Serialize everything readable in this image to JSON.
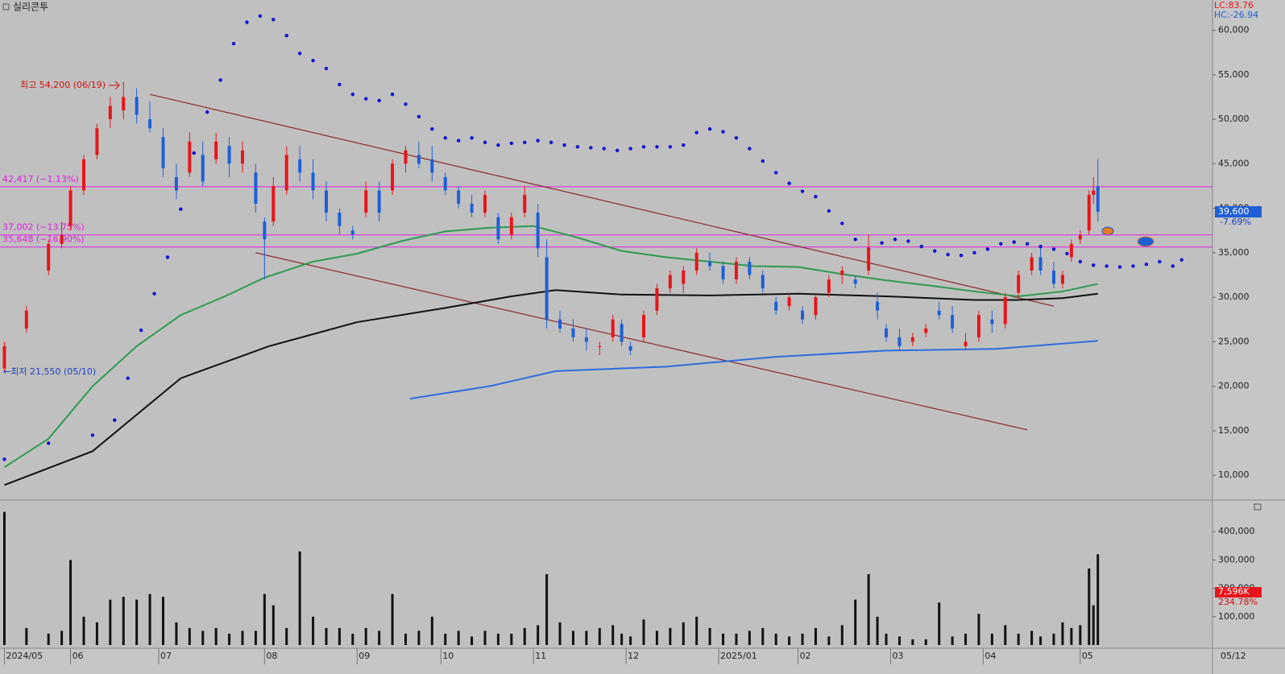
{
  "chart_data": [
    {
      "type": "candlestick",
      "title": "실리콘투",
      "corner_labels": [
        "LC:83.76",
        "HC:-26.94"
      ],
      "x": [
        0,
        5,
        10,
        13,
        15,
        18,
        21,
        24,
        27,
        30,
        33,
        36,
        39,
        42,
        45,
        48,
        51,
        54,
        57,
        59,
        61,
        64,
        67,
        70,
        73,
        76,
        79,
        82,
        85,
        88,
        91,
        94,
        97,
        100,
        103,
        106,
        109,
        112,
        115,
        118,
        121,
        123,
        126,
        129,
        132,
        135,
        138,
        140,
        142,
        145,
        148,
        151,
        154,
        157,
        160,
        163,
        166,
        169,
        172,
        175,
        178,
        181,
        184,
        187,
        190,
        193,
        196,
        198,
        200,
        203,
        206,
        209,
        212,
        215,
        218,
        221,
        224,
        227,
        230,
        233,
        235,
        238,
        240,
        242,
        244,
        246,
        247,
        248
      ],
      "open": [
        22000,
        26500,
        33000,
        36000,
        38000,
        42000,
        46000,
        50000,
        51000,
        52500,
        50000,
        48000,
        43500,
        44000,
        46000,
        45500,
        47000,
        45000,
        44000,
        38500,
        38500,
        42000,
        45500,
        44000,
        42000,
        39500,
        37500,
        39500,
        42000,
        42000,
        45000,
        46000,
        45500,
        43500,
        42000,
        40500,
        39500,
        39000,
        37000,
        39500,
        39500,
        34500,
        27500,
        26500,
        25500,
        24500,
        25500,
        27000,
        24500,
        25500,
        28500,
        31000,
        31500,
        33000,
        34000,
        33500,
        32000,
        34000,
        32500,
        29500,
        29000,
        28500,
        28000,
        30500,
        32500,
        32000,
        33000,
        29500,
        26500,
        25500,
        25000,
        26000,
        28500,
        28000,
        24500,
        25500,
        27500,
        27000,
        30500,
        33000,
        34500,
        33000,
        31500,
        34500,
        36500,
        37500,
        41500,
        42500
      ],
      "high": [
        25000,
        29000,
        36500,
        38500,
        42500,
        46000,
        49500,
        52500,
        54200,
        53500,
        52000,
        49000,
        45000,
        48500,
        47500,
        48500,
        48000,
        47500,
        45000,
        39000,
        43500,
        47000,
        47000,
        45500,
        43000,
        40000,
        38000,
        43000,
        43000,
        45500,
        47000,
        47500,
        47000,
        44000,
        42500,
        41500,
        42000,
        39500,
        39500,
        42500,
        40500,
        36500,
        28500,
        27500,
        26500,
        25000,
        28000,
        27500,
        25000,
        28500,
        31500,
        33000,
        33500,
        35500,
        35000,
        34000,
        34500,
        34500,
        33000,
        30000,
        30500,
        29000,
        30500,
        32500,
        33500,
        32500,
        37000,
        30500,
        27000,
        26500,
        26000,
        27000,
        29500,
        29000,
        26000,
        28500,
        28500,
        30500,
        33000,
        35000,
        35500,
        34000,
        33000,
        36500,
        37500,
        42000,
        43500,
        45500
      ],
      "low": [
        21550,
        26000,
        32500,
        35500,
        37500,
        41500,
        45500,
        49000,
        50000,
        49500,
        48500,
        43500,
        41000,
        43500,
        42500,
        45000,
        43500,
        44000,
        39500,
        32000,
        38000,
        41500,
        43000,
        41000,
        38500,
        37000,
        36500,
        39000,
        38500,
        41500,
        44000,
        44500,
        43000,
        41500,
        40000,
        39000,
        39000,
        36000,
        36500,
        39000,
        34500,
        26500,
        26000,
        25000,
        24000,
        23500,
        25000,
        24500,
        23500,
        25000,
        28000,
        30500,
        30500,
        32500,
        33000,
        31500,
        31500,
        32000,
        30500,
        28000,
        28500,
        27000,
        27500,
        30000,
        31500,
        31000,
        32500,
        27500,
        25000,
        24000,
        24500,
        25500,
        27500,
        26000,
        24000,
        25000,
        26000,
        26500,
        30000,
        32500,
        32500,
        31000,
        31000,
        34000,
        36000,
        37000,
        40500,
        38500
      ],
      "close": [
        24500,
        28500,
        36000,
        37000,
        42000,
        45500,
        49000,
        51500,
        52500,
        50500,
        49000,
        44500,
        42000,
        47500,
        43000,
        47500,
        45000,
        46500,
        40500,
        36500,
        42500,
        46000,
        44000,
        42000,
        39500,
        38000,
        37000,
        42000,
        39500,
        45000,
        46500,
        45000,
        44000,
        42000,
        40500,
        39500,
        41500,
        36500,
        39000,
        41500,
        35500,
        27500,
        26500,
        25500,
        25000,
        24500,
        27500,
        25000,
        24000,
        28000,
        31000,
        32500,
        33000,
        35000,
        33500,
        32000,
        34000,
        32500,
        31000,
        28500,
        30000,
        27500,
        30000,
        32000,
        33000,
        31500,
        35500,
        28500,
        25500,
        24500,
        25500,
        26500,
        28000,
        26500,
        25000,
        28000,
        27000,
        30000,
        32500,
        34500,
        33000,
        31500,
        32500,
        36000,
        37000,
        41500,
        42000,
        39600
      ],
      "up_color": "#e8141b",
      "down_color": "#1f5fd6",
      "lines": [
        {
          "color": "#2e9a50",
          "x": [
            0,
            10,
            20,
            30,
            40,
            50,
            59,
            70,
            80,
            90,
            100,
            110,
            120,
            130,
            140,
            150,
            160,
            170,
            180,
            190,
            200,
            210,
            220,
            230,
            240,
            248
          ],
          "values": [
            10900,
            14100,
            20000,
            24500,
            28000,
            30100,
            32200,
            34000,
            34900,
            36300,
            37400,
            37800,
            38000,
            36700,
            35200,
            34500,
            34000,
            33500,
            33400,
            32600,
            31900,
            31300,
            30650,
            30100,
            30650,
            31500
          ]
        },
        {
          "color": "#111111",
          "x": [
            0,
            20,
            40,
            60,
            80,
            100,
            115,
            125,
            140,
            160,
            180,
            200,
            220,
            230,
            240,
            248
          ],
          "values": [
            8900,
            12700,
            20900,
            24500,
            27200,
            28800,
            30100,
            30800,
            30300,
            30200,
            30400,
            30100,
            29700,
            29700,
            29900,
            30400
          ]
        },
        {
          "color": "#2f6be0",
          "x": [
            92,
            110,
            125,
            150,
            175,
            200,
            225,
            248
          ],
          "values": [
            18600,
            20000,
            21700,
            22200,
            23300,
            24000,
            24200,
            25100
          ]
        }
      ],
      "trendlines": [
        {
          "color": "#8b2a2a",
          "x": [
            33,
            238
          ],
          "values": [
            52800,
            29000
          ]
        },
        {
          "color": "#8b2a2a",
          "x": [
            57,
            232
          ],
          "values": [
            35000,
            15100
          ]
        }
      ],
      "sar": {
        "color": "#1010d0",
        "x": [
          0,
          10,
          20,
          25,
          28,
          31,
          34,
          37,
          40,
          43,
          46,
          49,
          52,
          55,
          58,
          61,
          64,
          67,
          70,
          73,
          76,
          79,
          82,
          85,
          88,
          91,
          94,
          97,
          100,
          103,
          106,
          109,
          112,
          115,
          118,
          121,
          124,
          127,
          130,
          133,
          136,
          139,
          142,
          145,
          148,
          151,
          154,
          157,
          160,
          163,
          166,
          169,
          172,
          175,
          178,
          181,
          184,
          187,
          190,
          193,
          196,
          199,
          202,
          205,
          208,
          211,
          214,
          217,
          220,
          223,
          226,
          229,
          232,
          235,
          238,
          241,
          244,
          247,
          250,
          253,
          256,
          259,
          262,
          265,
          267
        ],
        "values": [
          11800,
          13600,
          14500,
          16200,
          20900,
          26300,
          30400,
          34500,
          39900,
          46200,
          50800,
          54400,
          58500,
          60900,
          61600,
          61200,
          59400,
          57400,
          56600,
          55700,
          53900,
          52800,
          52300,
          52100,
          52800,
          51700,
          50300,
          48900,
          47900,
          47600,
          47900,
          47400,
          47100,
          47300,
          47400,
          47600,
          47400,
          47100,
          46900,
          46800,
          46700,
          46500,
          46700,
          46900,
          46900,
          46900,
          47100,
          48500,
          48900,
          48600,
          47900,
          46700,
          45300,
          44000,
          42800,
          41900,
          41300,
          39700,
          38300,
          36500,
          35400,
          36100,
          36500,
          36300,
          35700,
          35200,
          34800,
          34700,
          35000,
          35400,
          36000,
          36200,
          36000,
          35700,
          35400,
          34900,
          34000,
          33600,
          33500,
          33400,
          33500,
          33700,
          34000,
          33500,
          34200
        ]
      },
      "levels": [
        {
          "value": 42417,
          "label": "42,417 (−1.13%)"
        },
        {
          "value": 37002,
          "label": "37,002 (−13.75%)"
        },
        {
          "value": 35648,
          "label": "35,648 (−16.90%)"
        }
      ],
      "level_color": "#e020e0",
      "high_label": "최고 54,200 (06/19)",
      "low_label": "←최저 21,550 (05/10)",
      "last_price": {
        "value": 39600,
        "label": "39,600"
      },
      "change": "-7.69%",
      "xlim": [
        -1,
        274
      ],
      "ylim": [
        7300,
        63400
      ],
      "yticks": [
        {
          "value": 10000,
          "label": "10,000"
        },
        {
          "value": 15000,
          "label": "15,000"
        },
        {
          "value": 20000,
          "label": "20,000"
        },
        {
          "value": 25000,
          "label": "25,000"
        },
        {
          "value": 30000,
          "label": "30,000"
        },
        {
          "value": 35000,
          "label": "35,000"
        },
        {
          "value": 40000,
          "label": "40,000"
        },
        {
          "value": 45000,
          "label": "45,000"
        },
        {
          "value": 50000,
          "label": "50,000"
        },
        {
          "value": 55000,
          "label": "55,000"
        },
        {
          "value": 60000,
          "label": "60,000"
        }
      ],
      "xticks": [
        {
          "value": 0,
          "label": "2024/05"
        },
        {
          "value": 15,
          "label": "06"
        },
        {
          "value": 35,
          "label": "07"
        },
        {
          "value": 59,
          "label": "08"
        },
        {
          "value": 80,
          "label": "09"
        },
        {
          "value": 99,
          "label": "10"
        },
        {
          "value": 120,
          "label": "11"
        },
        {
          "value": 141,
          "label": "12"
        },
        {
          "value": 162,
          "label": "2025/01"
        },
        {
          "value": 180,
          "label": "02"
        },
        {
          "value": 201,
          "label": "03"
        },
        {
          "value": 222,
          "label": "04"
        },
        {
          "value": 244,
          "label": "05"
        }
      ],
      "end_date": "05/12"
    },
    {
      "type": "bar",
      "color": "#111111",
      "last_color": "#e8141b",
      "values": [
        470000,
        60000,
        40000,
        50000,
        300000,
        100000,
        80000,
        160000,
        170000,
        160000,
        180000,
        170000,
        80000,
        60000,
        50000,
        60000,
        40000,
        50000,
        50000,
        180000,
        140000,
        60000,
        330000,
        100000,
        60000,
        60000,
        40000,
        60000,
        50000,
        180000,
        40000,
        50000,
        100000,
        40000,
        50000,
        30000,
        50000,
        40000,
        40000,
        60000,
        70000,
        250000,
        80000,
        50000,
        50000,
        60000,
        70000,
        40000,
        30000,
        90000,
        50000,
        60000,
        80000,
        100000,
        60000,
        40000,
        40000,
        50000,
        60000,
        40000,
        30000,
        40000,
        60000,
        30000,
        70000,
        160000,
        250000,
        100000,
        40000,
        30000,
        20000,
        20000,
        150000,
        30000,
        40000,
        110000,
        40000,
        70000,
        40000,
        50000,
        30000,
        40000,
        80000,
        60000,
        70000,
        270000,
        140000,
        320000
      ],
      "ylim": [
        0,
        500000
      ],
      "yticks": [
        {
          "value": 100000,
          "label": "100,000"
        },
        {
          "value": 200000,
          "label": "200,000"
        },
        {
          "value": 300000,
          "label": "300,000"
        },
        {
          "value": 400000,
          "label": "400,000"
        }
      ],
      "last_volume": "7,596K",
      "volume_change": "234.78%"
    }
  ]
}
